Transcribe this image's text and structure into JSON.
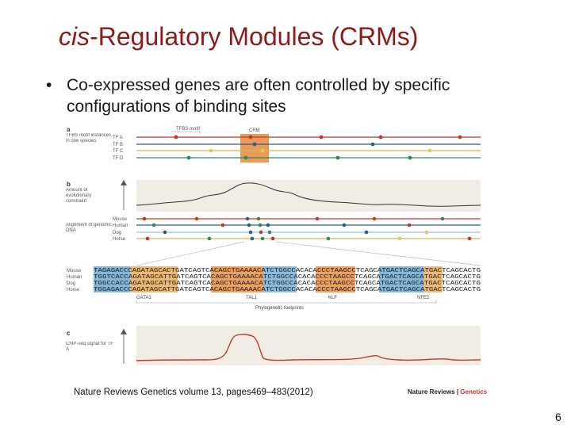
{
  "slide": {
    "title_italic": "cis",
    "title_rest": "-Regulatory Modules (CRMs)",
    "bullet": "Co-expressed genes are often controlled by specific configurations of binding sites",
    "caption": "Nature Reviews Genetics volume 13, pages469–483(2012)",
    "page_number": "6"
  },
  "figure": {
    "brand_journal": "Nature Reviews",
    "brand_sep": " | ",
    "brand_section": "Genetics",
    "panel_a": {
      "letter": "a",
      "label": "TFBS motif instances in one species",
      "header_motif": "TFBS motif",
      "header_crm": "CRM",
      "tracks": [
        "TF A",
        "TF B",
        "TF C",
        "TF D"
      ]
    },
    "panel_b": {
      "letter": "b",
      "conservation_label": "Amount of evolutionary constraint",
      "alignment_label": "Alignment of genomic DNA",
      "species": [
        "Mouse",
        "Human",
        "Dog",
        "Horse"
      ],
      "sequences": [
        "TAGAGACCCAGATAGCACTGATCAGTCACAGCTGAAAACATCTGGCCACACACCCTAAGCCTCAGCATGACTCAGCATGACTCAGCACTG",
        "TGGTCACCAGATAGCATTGATCAGTCACAGCTGAAAACATCTGGCCACACACCCTAAGCCTCAGCATGACTCAGCATGACTCAGCACTG",
        "TGGCCACCAGATAGCATTGATCAGTCACAGCTGAAAACATCTGGCCACACACCCTAAGCCTCAGCATGACTCAGCATGACTCAGCACTG",
        "TGGAGACCCAGATAGCATTGATCAGTCACAGCTGAAAACATCTGGCCACACACCCTAAGCCTCAGCATGACTCAGCATGACTCAGCACTG"
      ],
      "tfbs": [
        "GATA1",
        "TAL1",
        "KLF",
        "NFE2"
      ],
      "footprint_label": "Phylogenetic footprints"
    },
    "panel_c": {
      "letter": "c",
      "label": "ChIP-seq signal for TF A"
    }
  }
}
